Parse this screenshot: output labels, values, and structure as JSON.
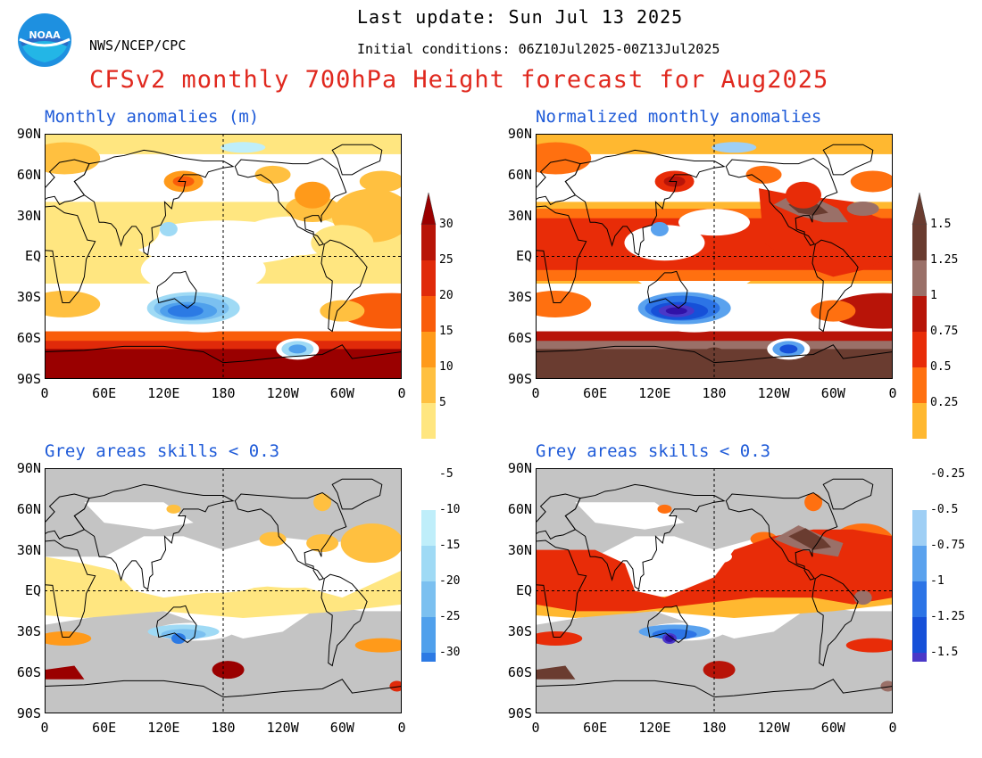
{
  "header": {
    "last_update": "Last update: Sun Jul 13 2025",
    "agency": "NWS/NCEP/CPC",
    "initial_conditions": "Initial conditions: 06Z10Jul2025-00Z13Jul2025",
    "title": "CFSv2 monthly 700hPa Height forecast for Aug2025",
    "logo_text": "NOAA"
  },
  "panels": [
    {
      "id": "tl",
      "title": "Monthly anomalies (m)",
      "masked": false,
      "scale": "abs"
    },
    {
      "id": "tr",
      "title": "Normalized monthly anomalies",
      "masked": false,
      "scale": "norm"
    },
    {
      "id": "bl",
      "title": "Grey areas skills < 0.3",
      "masked": true,
      "scale": "abs"
    },
    {
      "id": "br",
      "title": "Grey areas skills < 0.3",
      "masked": true,
      "scale": "norm"
    }
  ],
  "axes": {
    "lat_labels": [
      "90N",
      "60N",
      "30N",
      "EQ",
      "30S",
      "60S",
      "90S"
    ],
    "lon_labels": [
      "0",
      "60E",
      "120E",
      "180",
      "120W",
      "60W",
      "0"
    ]
  },
  "colorbars": {
    "abs": {
      "labels": [
        "30",
        "25",
        "20",
        "15",
        "10",
        "5",
        "-5",
        "-10",
        "-15",
        "-20",
        "-25",
        "-30"
      ]
    },
    "norm": {
      "labels": [
        "1.5",
        "1.25",
        "1",
        "0.75",
        "0.5",
        "0.25",
        "-0.25",
        "-0.5",
        "-0.75",
        "-1",
        "-1.25",
        "-1.5"
      ]
    }
  },
  "colors": {
    "warm": [
      "#ffe680",
      "#ffc040",
      "#ff9a1a",
      "#f95c0a",
      "#e02a0a",
      "#b81408"
    ],
    "warm_top": "#9a0000",
    "cold": [
      "#bfeefa",
      "#9fdaf5",
      "#7bc0f0",
      "#4fa0ec",
      "#2c7ae4",
      "#1457d6"
    ],
    "cold_bottom": "#0a40c8",
    "norm_warm": [
      "#ffb830",
      "#ff7010",
      "#e82c08",
      "#b81408",
      "#9a7068",
      "#6a3c30"
    ],
    "norm_warm_top": "#6a3c30",
    "norm_cold": [
      "#9fcff5",
      "#5aa2ee",
      "#2c74e6",
      "#1650d8",
      "#4a38c8",
      "#3012a8"
    ],
    "norm_cold_bottom": "#1a0a90",
    "mask": "#c4c4c4"
  }
}
